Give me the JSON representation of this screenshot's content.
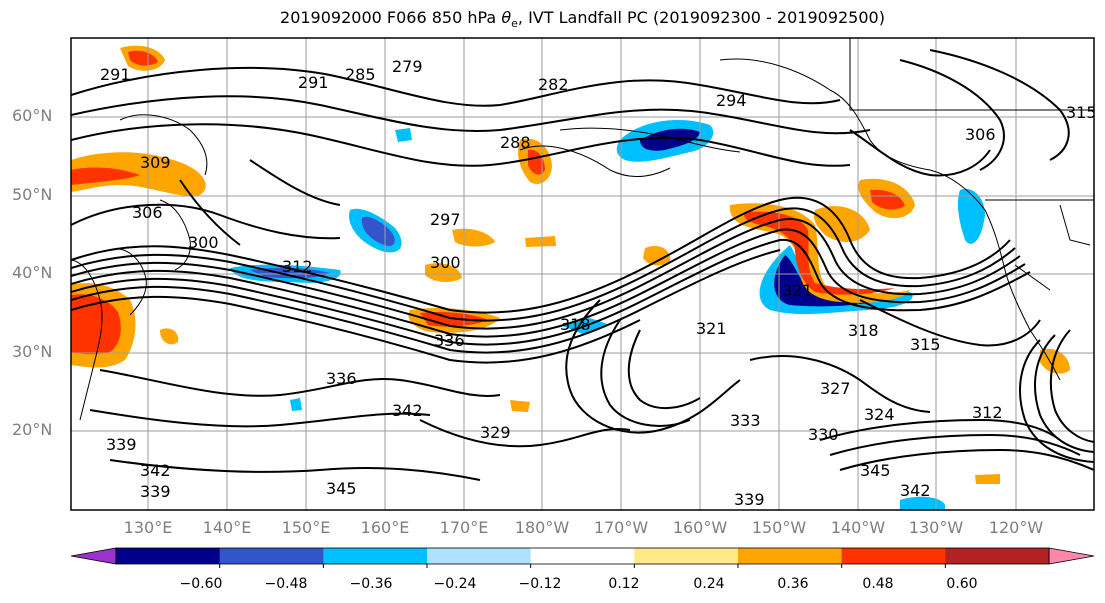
{
  "title_text": "2019092000 F066 850 hPa",
  "title_symbol": "θ",
  "title_subscript": "e",
  "title_suffix": ", IVT Landfall PC (2019092300 - 2019092500)",
  "lat_labels": [
    "60°N",
    "50°N",
    "40°N",
    "30°N",
    "20°N"
  ],
  "lon_labels": [
    "130°E",
    "140°E",
    "150°E",
    "160°E",
    "170°E",
    "180°W",
    "170°W",
    "160°W",
    "150°W",
    "140°W",
    "130°W",
    "120°W"
  ],
  "contour_labels": [
    "279",
    "285",
    "291",
    "282",
    "294",
    "306",
    "315",
    "288",
    "300",
    "297",
    "300",
    "312",
    "318",
    "315",
    "321",
    "318",
    "324",
    "327",
    "330",
    "333",
    "336",
    "342",
    "336",
    "339",
    "342",
    "345",
    "339",
    "342",
    "345",
    "312",
    "321",
    "329",
    "291",
    "309",
    "306",
    "339",
    "324"
  ],
  "colorbar": {
    "ticks": [
      "−0.60",
      "−0.48",
      "−0.36",
      "−0.24",
      "−0.12",
      "0.12",
      "0.24",
      "0.36",
      "0.48",
      "0.60"
    ],
    "colors": [
      "#9933cc",
      "#00008b",
      "#3355cc",
      "#00bfff",
      "#b0e0ff",
      "#ffffff",
      "#ffea8a",
      "#ffa500",
      "#ff3300",
      "#b22222",
      "#ff88aa"
    ]
  },
  "colors": {
    "positive_strong": "#ff3300",
    "positive_mid": "#ffa500",
    "negative_strong": "#00008b",
    "negative_mid": "#00bfff",
    "contour": "#000000",
    "grid": "#9e9e9e",
    "coast": "#000000"
  }
}
